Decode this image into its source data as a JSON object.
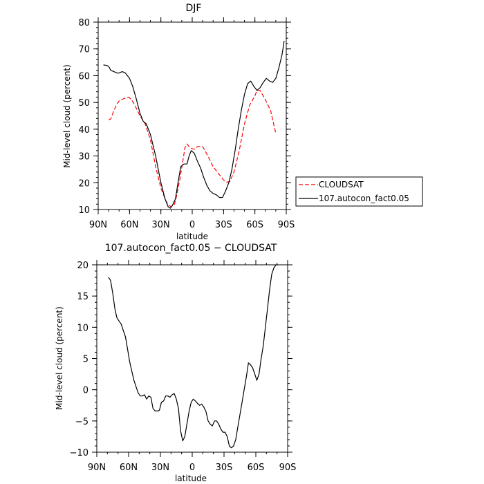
{
  "colors": {
    "background": "#ffffff",
    "axis": "#000000",
    "cloudsat": "#ff0000",
    "model": "#000000"
  },
  "chart_data": [
    {
      "type": "line",
      "title": "DJF",
      "xlabel": "latitude",
      "ylabel": "Mid-level cloud (percent)",
      "xlim": [
        90,
        -90
      ],
      "ylim": [
        10,
        80
      ],
      "grid": false,
      "legend_position": "right",
      "x_ticks": [
        90,
        60,
        30,
        0,
        -30,
        -60,
        -90
      ],
      "x_tick_labels": [
        "90N",
        "60N",
        "30N",
        "0",
        "30S",
        "60S",
        "90S"
      ],
      "y_ticks": [
        10,
        20,
        30,
        40,
        50,
        60,
        70,
        80
      ],
      "y_tick_labels": [
        "10",
        "20",
        "30",
        "40",
        "50",
        "60",
        "70",
        "80"
      ],
      "series": [
        {
          "name": "CLOUDSAT",
          "style": "dashed",
          "color": "#ff0000",
          "x": [
            80,
            78,
            75,
            72,
            70,
            65,
            61,
            58,
            55,
            50,
            45,
            40,
            35,
            30,
            25,
            22,
            20,
            17,
            15,
            12,
            9,
            7,
            5,
            2,
            -2,
            -5,
            -10,
            -15,
            -20,
            -25,
            -30,
            -33,
            -36,
            -40,
            -45,
            -50,
            -55,
            -60,
            -62,
            -65,
            -70,
            -75,
            -80
          ],
          "y": [
            43.5,
            43.8,
            47,
            49.5,
            50.5,
            51.5,
            52,
            51,
            49,
            45,
            42,
            36,
            26,
            18,
            13,
            11.5,
            11,
            12,
            15,
            21,
            28,
            33,
            34.5,
            33,
            32.5,
            33.5,
            33.5,
            30,
            26,
            23.5,
            21,
            20.2,
            20.5,
            24,
            32,
            42,
            49,
            52.5,
            54.5,
            54.5,
            51,
            47,
            38.5
          ]
        },
        {
          "name": "107.autocon_fact0.05",
          "style": "solid",
          "color": "#000000",
          "x": [
            85,
            82,
            80,
            78,
            75,
            72,
            70,
            67,
            64,
            60,
            57,
            54,
            50,
            47,
            44,
            40,
            35,
            30,
            26,
            23,
            21,
            19,
            16,
            14,
            11,
            8,
            5,
            3,
            1,
            -2,
            -5,
            -8,
            -11,
            -14,
            -17,
            -20,
            -23,
            -26,
            -29,
            -32,
            -35,
            -38,
            -41,
            -44,
            -47,
            -50,
            -53,
            -56,
            -59,
            -62,
            -65,
            -68,
            -71,
            -74,
            -77,
            -80,
            -83,
            -86,
            -88
          ],
          "y": [
            64,
            63.8,
            63.5,
            62,
            61.5,
            61,
            61,
            61.5,
            61,
            59,
            56,
            52,
            46,
            43,
            42,
            38,
            30,
            20,
            14,
            11,
            10.5,
            11.5,
            14,
            19,
            26,
            27,
            27,
            30,
            32,
            31,
            28,
            25.5,
            22,
            19,
            17,
            16,
            15.5,
            14.5,
            14.5,
            17,
            20,
            25,
            32,
            40,
            47,
            53,
            57,
            58,
            56,
            54.5,
            55.5,
            57.5,
            59,
            58,
            57.5,
            59,
            63,
            68,
            73
          ]
        }
      ]
    },
    {
      "type": "line",
      "title": "107.autocon_fact0.05 − CLOUDSAT",
      "xlabel": "latitude",
      "ylabel": "Mid-level cloud (percent)",
      "xlim": [
        90,
        -90
      ],
      "ylim": [
        -10,
        20
      ],
      "grid": false,
      "x_ticks": [
        90,
        60,
        30,
        0,
        -30,
        -60,
        -90
      ],
      "x_tick_labels": [
        "90N",
        "60N",
        "30N",
        "0",
        "30S",
        "60S",
        "90S"
      ],
      "y_ticks": [
        -10,
        -5,
        0,
        5,
        10,
        15,
        20
      ],
      "y_tick_labels": [
        "−10",
        "−5",
        "0",
        "5",
        "10",
        "15",
        "20"
      ],
      "series": [
        {
          "style": "solid",
          "color": "#000000",
          "x": [
            79,
            77,
            75,
            73,
            71,
            69,
            67,
            65,
            63,
            61,
            59,
            57,
            55,
            53,
            51,
            49,
            47,
            45,
            43,
            41,
            39,
            37,
            35,
            33,
            31,
            29,
            27,
            25,
            23,
            21,
            19,
            17,
            15,
            13,
            11,
            9,
            7,
            5,
            3,
            1,
            -1,
            -3,
            -5,
            -7,
            -9,
            -11,
            -13,
            -15,
            -17,
            -19,
            -21,
            -23,
            -25,
            -27,
            -29,
            -31,
            -33,
            -35,
            -37,
            -39,
            -41,
            -43,
            -45,
            -47,
            -49,
            -51,
            -53,
            -55,
            -57,
            -59,
            -61,
            -63,
            -65,
            -67,
            -69,
            -71,
            -73,
            -75,
            -77,
            -79,
            -81
          ],
          "y": [
            18,
            17.5,
            15.5,
            13,
            11.5,
            11,
            10.5,
            9.5,
            8.5,
            6.5,
            4.5,
            3,
            1.5,
            0.5,
            -0.5,
            -1,
            -1,
            -0.8,
            -1.5,
            -1,
            -1.2,
            -3,
            -3.4,
            -3.4,
            -3.3,
            -2,
            -1.8,
            -1,
            -1,
            -1.2,
            -0.8,
            -0.6,
            -1.5,
            -3,
            -6.5,
            -8.2,
            -7.5,
            -5.5,
            -3.5,
            -2,
            -1.5,
            -1.8,
            -2.2,
            -2.5,
            -2.3,
            -2.8,
            -3.5,
            -5,
            -5.5,
            -5.8,
            -5,
            -5,
            -5.5,
            -6.3,
            -6.8,
            -6.8,
            -7.5,
            -9,
            -9.3,
            -9,
            -8,
            -6,
            -4,
            -2,
            0,
            2,
            4.3,
            4,
            3.5,
            2.5,
            1.5,
            2.5,
            5,
            7,
            10,
            13,
            16,
            18.5,
            19.5,
            20,
            20
          ]
        }
      ]
    }
  ]
}
